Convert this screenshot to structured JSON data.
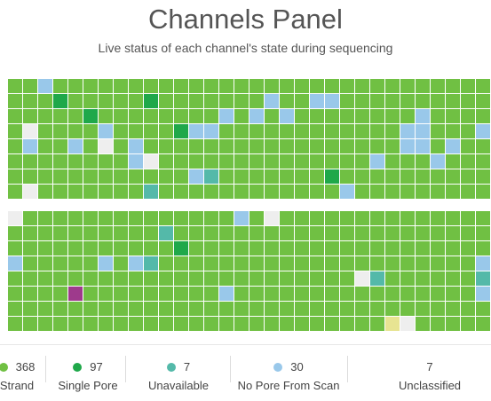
{
  "panel": {
    "title": "Channels Panel",
    "subtitle": "Live status of each channel's state during sequencing"
  },
  "colors": {
    "strand": "#70c043",
    "single_pore": "#1fa84a",
    "unavailable": "#54b9a9",
    "no_pore_from_scan": "#99c8ea",
    "unclassified": "#eeeeee",
    "purple": "#9e3a8c",
    "yellow": "#e7e492"
  },
  "legend": [
    {
      "key": "strand",
      "count": "368",
      "label": "Strand",
      "color": "#70c043"
    },
    {
      "key": "single_pore",
      "count": "97",
      "label": "Single Pore",
      "color": "#1fa84a"
    },
    {
      "key": "unavailable",
      "count": "7",
      "label": "Unavailable",
      "color": "#54b9a9"
    },
    {
      "key": "no_pore_from_scan",
      "count": "30",
      "label": "No Pore From Scan",
      "color": "#99c8ea"
    },
    {
      "key": "unclassified",
      "count": "7",
      "label": "Unclassified",
      "color": null
    }
  ],
  "grids": [
    {
      "rows": [
        "SSBSSSSSSSSSSSSSSSSSSSSSSSSSSSSS",
        "SSSPSSSSSPSSSSSSSBSSBBSSSSSSSSSS",
        "SSSSSPSSSSSSSSBSBSBSSSSSSSSBSSSS",
        "SWSSSSBSSSSPBBSSSSSSSSSSSSBBSSSB",
        "SBSSBSWSBSSSSSSSSSSSSSSSSSBBSBSS",
        "SSSSSSSSBWSSSSSSSSSSSSSSBSSSBSSS",
        "SSSSSSSSSSSSBUSSSSSSSPSSSSSSSSSS",
        "SWSSSSSSSUSSSSSSSSSSSSBSSSSSSSSS"
      ]
    },
    {
      "rows": [
        "WSSSSSSSSSSSSSSBSWSSSSSSSSSSSSSS",
        "SSSSSSSSSSUSSSSSSSSSSSSSSSSSSSSS",
        "SSSSSSSSSSSPSSSSSSSSSSSSSSSSSSSS",
        "BSSSSSBSBUSSSSSSSSSSSSSSSSSSSSSB",
        "SSSSSSSSSSSSSSSSSSSSSSSWUSSSSSSU",
        "SSSSKSSSSSSSSSBSSSSSSSSSSSSSSSSB",
        "SSSSSSSSSSSSSSSSSSSSSSSSSSSSSSSS",
        "SSSSSSSSSSSSSSSSSSSSSSSSSYWSSSSS"
      ]
    }
  ]
}
